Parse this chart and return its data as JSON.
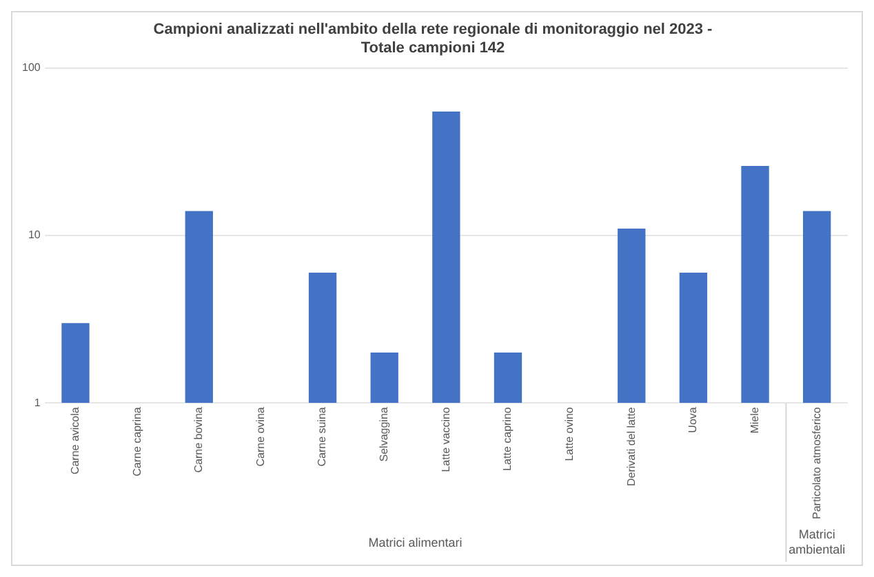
{
  "chart_data": {
    "type": "bar",
    "title": "Campioni analizzati nell'ambito della rete regionale di monitoraggio nel 2023 - Totale campioni 142",
    "categories": [
      "Carne avicola",
      "Carne caprina",
      "Carne bovina",
      "Carne ovina",
      "Carne suina",
      "Selvaggina",
      "Latte vaccino",
      "Latte caprino",
      "Latte ovino",
      "Derivati del latte",
      "Uova",
      "Miele",
      "Particolato atmosferico"
    ],
    "values": [
      3,
      null,
      14,
      null,
      6,
      2,
      55,
      2,
      null,
      11,
      6,
      26,
      14
    ],
    "color": "#4472c4",
    "log": "y",
    "ylim": [
      1,
      100
    ],
    "yticks": [
      1,
      10,
      100
    ],
    "grid": "y",
    "legend": false,
    "annotations": [
      "Matrici alimentari",
      "Matrici ambientali"
    ]
  }
}
